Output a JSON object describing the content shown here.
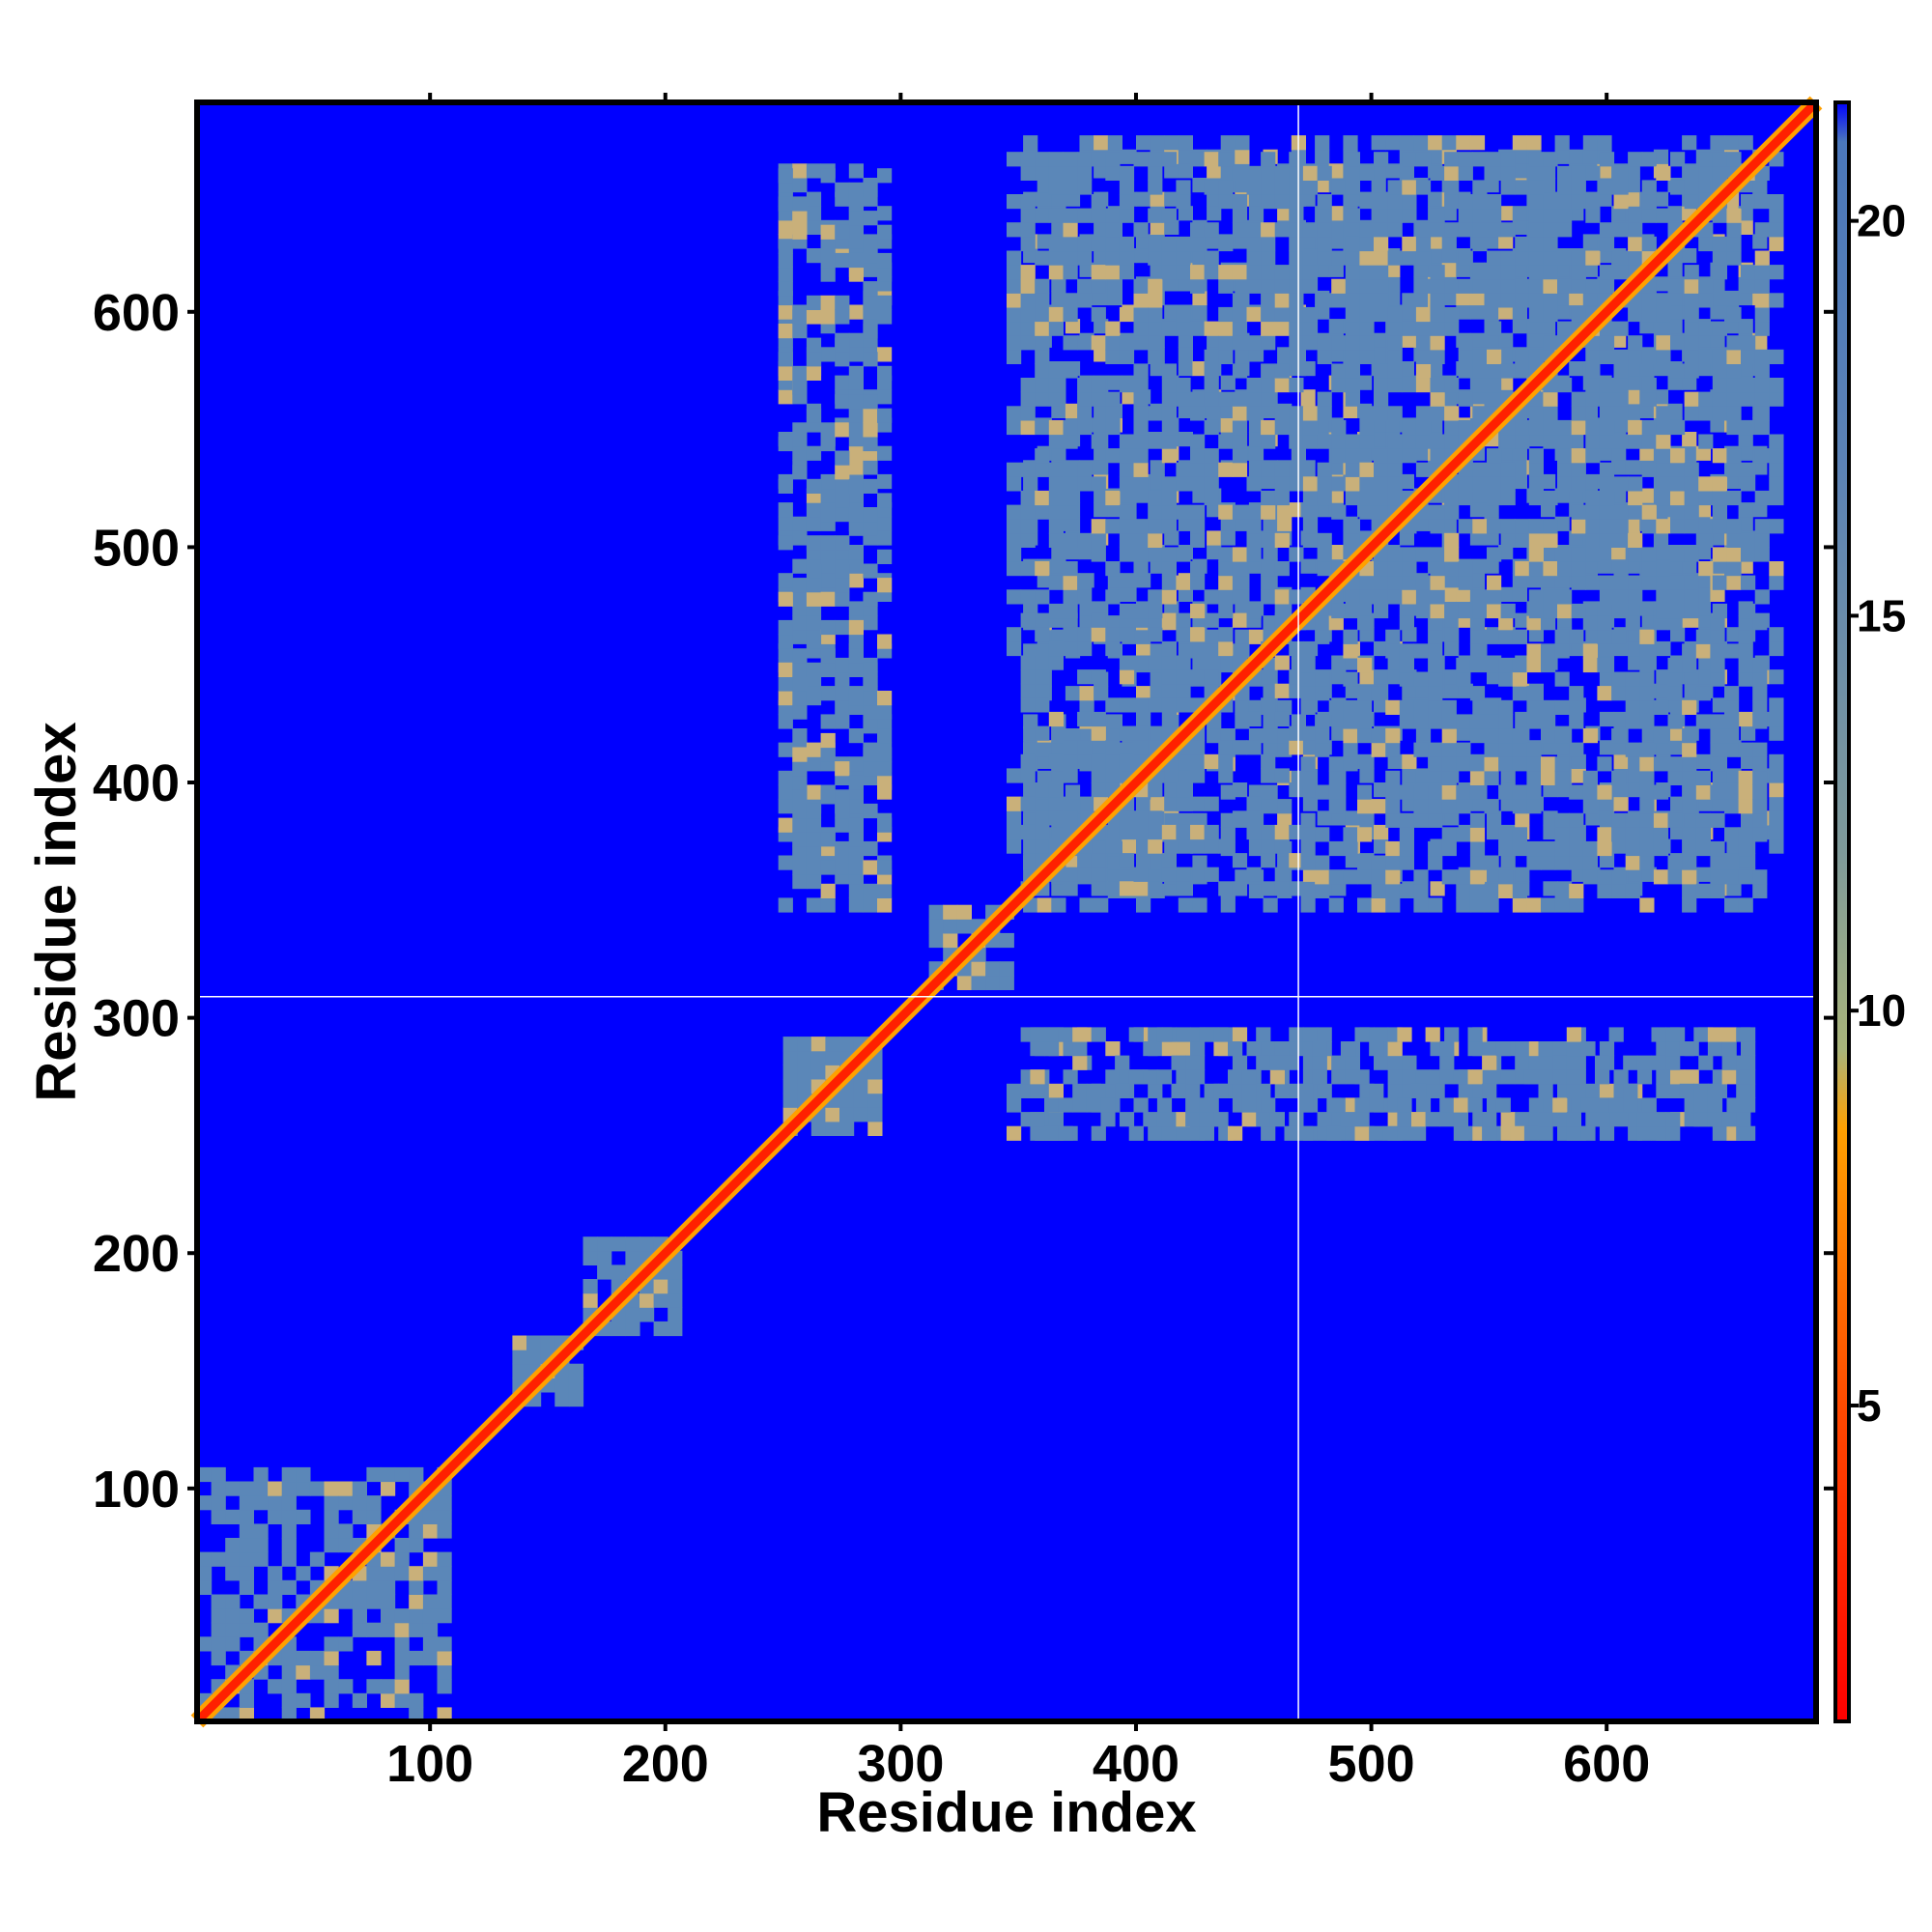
{
  "chart_data": {
    "type": "heatmap",
    "title": "",
    "xlabel": "Residue index",
    "ylabel": "Residue index",
    "xlim": [
      1,
      689
    ],
    "ylim": [
      1,
      689
    ],
    "xticks": [
      100,
      200,
      300,
      400,
      500,
      600
    ],
    "yticks": [
      100,
      200,
      300,
      400,
      500,
      600
    ],
    "colorbar": {
      "ticks": [
        5,
        10,
        15,
        20
      ],
      "range": [
        1,
        21.5
      ],
      "stops": [
        {
          "value": 1,
          "color": "#ff0000"
        },
        {
          "value": 5,
          "color": "#ff4a00"
        },
        {
          "value": 8.5,
          "color": "#ffa000"
        },
        {
          "value": 9.5,
          "color": "#a9b47a"
        },
        {
          "value": 12,
          "color": "#7f9a9a"
        },
        {
          "value": 17,
          "color": "#5b82b6"
        },
        {
          "value": 21,
          "color": "#4b78bb"
        },
        {
          "value": 21.5,
          "color": "#0000ff"
        }
      ]
    },
    "background_color": "#0000ff",
    "contact_color": "#5b87b8",
    "close_contact_color": "#c9b07a",
    "diagonal_color": "#ff2000",
    "domain_separators": {
      "x": 469,
      "y": 309,
      "color": "#ffffff"
    },
    "contact_blocks": [
      {
        "x": [
          1,
          105
        ],
        "y": [
          1,
          105
        ],
        "density": 0.65
      },
      {
        "x": [
          135,
          165
        ],
        "y": [
          135,
          165
        ],
        "density": 0.9
      },
      {
        "x": [
          165,
          205
        ],
        "y": [
          165,
          205
        ],
        "density": 0.9
      },
      {
        "x": [
          250,
          290
        ],
        "y": [
          250,
          290
        ],
        "density": 0.9
      },
      {
        "x": [
          312,
          345
        ],
        "y": [
          312,
          345
        ],
        "density": 0.8
      },
      {
        "x": [
          352,
          420
        ],
        "y": [
          352,
          420
        ],
        "density": 0.7
      },
      {
        "x": [
          248,
          292
        ],
        "y": [
          345,
          660
        ],
        "density": 0.55
      },
      {
        "x": [
          352,
          470
        ],
        "y": [
          345,
          670
        ],
        "density": 0.5
      },
      {
        "x": [
          470,
          665
        ],
        "y": [
          345,
          670
        ],
        "density": 0.6
      },
      {
        "x": [
          355,
          660
        ],
        "y": [
          248,
          292
        ],
        "density": 0.45
      }
    ],
    "diagonal_from": 1,
    "diagonal_to": 689
  }
}
